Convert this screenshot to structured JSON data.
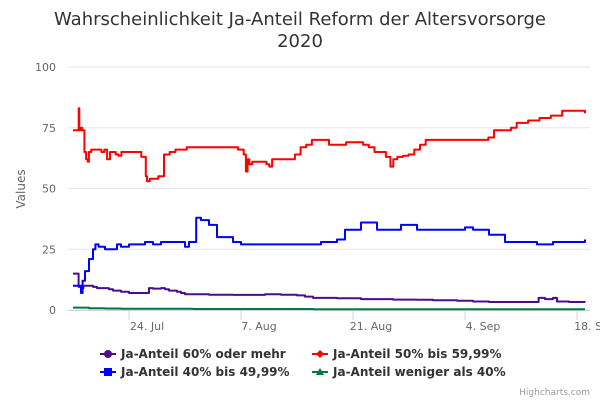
{
  "chart_data": {
    "type": "line",
    "title": "Wahrscheinlichkeit Ja-Anteil Reform der Altersvorsorge",
    "subtitle_line2": "2020",
    "xlabel": "",
    "ylabel": "Values",
    "ylim": [
      0,
      100
    ],
    "yticks": [
      0,
      25,
      50,
      75,
      100
    ],
    "xlim_days_from_17_jul": [
      0,
      64
    ],
    "x_unit": "days since 17. Jul 2020",
    "xticks": [
      {
        "day": 7,
        "label": "24. Jul"
      },
      {
        "day": 21,
        "label": "7. Aug"
      },
      {
        "day": 35,
        "label": "21. Aug"
      },
      {
        "day": 49,
        "label": "4. Sep"
      },
      {
        "day": 63,
        "label": "18. Sep"
      }
    ],
    "grid": true,
    "legend_position": "bottom",
    "credits": "Highcharts.com",
    "series": [
      {
        "name": "Ja-Anteil 60% oder mehr",
        "color": "#4b0d8c",
        "marker": "circle",
        "points": [
          [
            0,
            15
          ],
          [
            0.6,
            15
          ],
          [
            0.7,
            9.5
          ],
          [
            1.0,
            9
          ],
          [
            1.3,
            10
          ],
          [
            2,
            10
          ],
          [
            2.5,
            9.5
          ],
          [
            3,
            9
          ],
          [
            4,
            9
          ],
          [
            4.5,
            8.5
          ],
          [
            5,
            8
          ],
          [
            6,
            7.5
          ],
          [
            7,
            7
          ],
          [
            8,
            7
          ],
          [
            9,
            7
          ],
          [
            9.5,
            9
          ],
          [
            10,
            8.8
          ],
          [
            11,
            9
          ],
          [
            11.5,
            8.5
          ],
          [
            12,
            8
          ],
          [
            13,
            7.5
          ],
          [
            13.5,
            7
          ],
          [
            14,
            6.5
          ],
          [
            17,
            6.3
          ],
          [
            20,
            6.2
          ],
          [
            23,
            6.2
          ],
          [
            24,
            6.5
          ],
          [
            26,
            6.3
          ],
          [
            28,
            6
          ],
          [
            29,
            5.5
          ],
          [
            30,
            5
          ],
          [
            33,
            4.8
          ],
          [
            36,
            4.5
          ],
          [
            40,
            4.3
          ],
          [
            43,
            4.2
          ],
          [
            45,
            4
          ],
          [
            48,
            3.8
          ],
          [
            50,
            3.5
          ],
          [
            52,
            3.3
          ],
          [
            55,
            3.3
          ],
          [
            58,
            3.3
          ],
          [
            58.2,
            5
          ],
          [
            59,
            4.5
          ],
          [
            60,
            5
          ],
          [
            60.5,
            3.5
          ],
          [
            62,
            3.3
          ],
          [
            64,
            3.2
          ]
        ]
      },
      {
        "name": "Ja-Anteil 50% bis 59,99%",
        "color": "#ff0000",
        "marker": "diamond",
        "points": [
          [
            0,
            74
          ],
          [
            0.9,
            74
          ],
          [
            1.0,
            83
          ],
          [
            1.1,
            74
          ],
          [
            1.4,
            75
          ],
          [
            1.6,
            74
          ],
          [
            2,
            65
          ],
          [
            2.3,
            62
          ],
          [
            2.6,
            61
          ],
          [
            2.8,
            65
          ],
          [
            3.2,
            66
          ],
          [
            4,
            66
          ],
          [
            5,
            65
          ],
          [
            5.5,
            66
          ],
          [
            6,
            62
          ],
          [
            6.5,
            65
          ],
          [
            7.5,
            64
          ],
          [
            8,
            63.5
          ],
          [
            8.5,
            65
          ],
          [
            9,
            65
          ],
          [
            11,
            65
          ],
          [
            12,
            63
          ],
          [
            12.4,
            63
          ],
          [
            12.8,
            55
          ],
          [
            13,
            53
          ],
          [
            13.5,
            54
          ],
          [
            15,
            55
          ],
          [
            16,
            64
          ],
          [
            17,
            65
          ],
          [
            18,
            66
          ],
          [
            20,
            67
          ],
          [
            28,
            67
          ],
          [
            29,
            66
          ],
          [
            30,
            64
          ],
          [
            30.4,
            57
          ],
          [
            30.7,
            62
          ],
          [
            31,
            60
          ],
          [
            31.5,
            61
          ],
          [
            32,
            61
          ],
          [
            33,
            61
          ],
          [
            34,
            60
          ],
          [
            34.5,
            59
          ],
          [
            35,
            62
          ],
          [
            38,
            62
          ],
          [
            39,
            64
          ],
          [
            40,
            67
          ],
          [
            41,
            68
          ],
          [
            42,
            70
          ],
          [
            44,
            70
          ],
          [
            45,
            68
          ],
          [
            47,
            68
          ],
          [
            48,
            69
          ],
          [
            50,
            69
          ],
          [
            51,
            68
          ],
          [
            52,
            67
          ],
          [
            53,
            65
          ],
          [
            54,
            65
          ],
          [
            55,
            63
          ],
          [
            55.5,
            63
          ],
          [
            55.8,
            59
          ],
          [
            56.3,
            62
          ],
          [
            57,
            63
          ],
          [
            58,
            63.5
          ],
          [
            59,
            64
          ],
          [
            60,
            66
          ],
          [
            61,
            68
          ],
          [
            62,
            70
          ],
          [
            64,
            70
          ],
          [
            66,
            70
          ],
          [
            68,
            70
          ],
          [
            70,
            70
          ],
          [
            72,
            70
          ],
          [
            73,
            71
          ],
          [
            74,
            74
          ],
          [
            76,
            74
          ],
          [
            77,
            75
          ],
          [
            78,
            77
          ],
          [
            79,
            77
          ],
          [
            80,
            78
          ],
          [
            82,
            79
          ],
          [
            84,
            80
          ],
          [
            86,
            82
          ],
          [
            88,
            82
          ],
          [
            90,
            81
          ]
        ],
        "note": "Approximate trace; x mapping compressed to plot width"
      },
      {
        "name": "Ja-Anteil 40% bis 49,99%",
        "color": "#0000ff",
        "marker": "square",
        "points": [
          [
            0,
            10
          ],
          [
            0.9,
            10
          ],
          [
            1.0,
            7
          ],
          [
            1.2,
            12
          ],
          [
            1.5,
            16
          ],
          [
            2,
            21
          ],
          [
            2.5,
            25
          ],
          [
            2.8,
            27
          ],
          [
            3.2,
            26
          ],
          [
            4,
            25
          ],
          [
            5,
            25
          ],
          [
            5.5,
            27
          ],
          [
            6,
            26
          ],
          [
            7,
            27
          ],
          [
            8,
            27
          ],
          [
            9,
            28
          ],
          [
            10,
            27
          ],
          [
            11,
            28
          ],
          [
            12,
            28
          ],
          [
            13,
            28
          ],
          [
            14,
            26
          ],
          [
            14.5,
            28
          ],
          [
            15,
            28
          ],
          [
            15.4,
            38
          ],
          [
            16,
            37
          ],
          [
            17,
            35
          ],
          [
            18,
            30
          ],
          [
            20,
            28
          ],
          [
            21,
            27
          ],
          [
            23,
            27
          ],
          [
            26,
            27
          ],
          [
            30,
            27
          ],
          [
            31,
            28
          ],
          [
            32,
            28
          ],
          [
            33,
            29
          ],
          [
            34,
            33
          ],
          [
            35,
            33
          ],
          [
            36,
            36
          ],
          [
            38,
            33
          ],
          [
            40,
            33
          ],
          [
            41,
            35
          ],
          [
            43,
            33
          ],
          [
            45,
            33
          ],
          [
            47,
            33
          ],
          [
            49,
            34
          ],
          [
            50,
            33
          ],
          [
            52,
            31
          ],
          [
            54,
            28
          ],
          [
            56,
            28
          ],
          [
            58,
            27
          ],
          [
            60,
            28
          ],
          [
            62,
            28
          ],
          [
            64,
            29
          ]
        ]
      },
      {
        "name": "Ja-Anteil weniger als 40%",
        "color": "#007a3d",
        "marker": "triangle",
        "points": [
          [
            0,
            1
          ],
          [
            2,
            0.7
          ],
          [
            4,
            0.6
          ],
          [
            6,
            0.5
          ],
          [
            10,
            0.5
          ],
          [
            15,
            0.4
          ],
          [
            20,
            0.4
          ],
          [
            30,
            0.3
          ],
          [
            40,
            0.3
          ],
          [
            50,
            0.3
          ],
          [
            60,
            0.3
          ],
          [
            64,
            0.3
          ]
        ]
      }
    ]
  }
}
